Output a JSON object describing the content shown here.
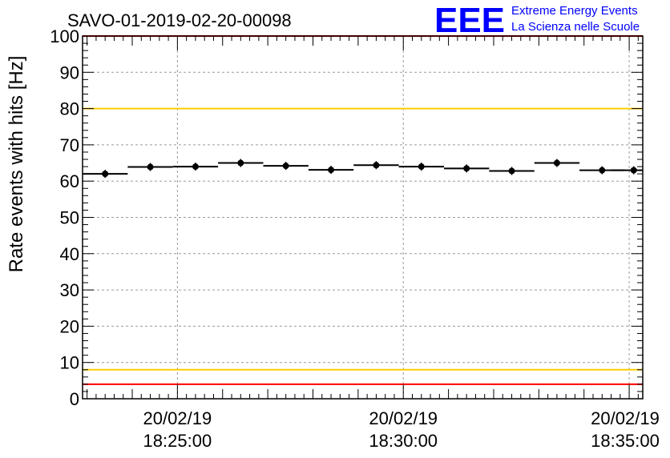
{
  "chart_data": {
    "type": "scatter",
    "title": "SAVO-01-2019-02-20-00098",
    "ylabel": "Rate events with hits [Hz]",
    "xlabel": "",
    "ylim": [
      0,
      100
    ],
    "yticks": [
      0,
      10,
      20,
      30,
      40,
      50,
      60,
      70,
      80,
      90,
      100
    ],
    "xlim_minutes": [
      22.9,
      35.3
    ],
    "xticks": [
      {
        "minute": 25,
        "date": "20/02/19",
        "time": "18:25:00"
      },
      {
        "minute": 30,
        "date": "20/02/19",
        "time": "18:30:00"
      },
      {
        "minute": 35,
        "date": "20/02/19",
        "time": "18:35:00"
      }
    ],
    "grid": true,
    "series": [
      {
        "name": "rate",
        "bin_width_minutes": 1.0,
        "x_minutes": [
          23.4,
          24.4,
          25.4,
          26.4,
          27.4,
          28.4,
          29.4,
          30.4,
          31.4,
          32.4,
          33.4,
          34.4,
          35.1
        ],
        "values": [
          62.0,
          63.9,
          64.0,
          65.0,
          64.2,
          63.1,
          64.4,
          64.0,
          63.5,
          62.8,
          65.0,
          63.0,
          63.0
        ]
      }
    ],
    "reference_lines": [
      {
        "value": 100,
        "color": "#ff0000"
      },
      {
        "value": 80,
        "color": "#ffcc00"
      },
      {
        "value": 8,
        "color": "#ffcc00"
      },
      {
        "value": 4,
        "color": "#ff0000"
      }
    ]
  },
  "logo": {
    "mark": "EEE",
    "line1": "Extreme Energy Events",
    "line2": "La Scienza nelle Scuole",
    "color": "#0000ff"
  }
}
